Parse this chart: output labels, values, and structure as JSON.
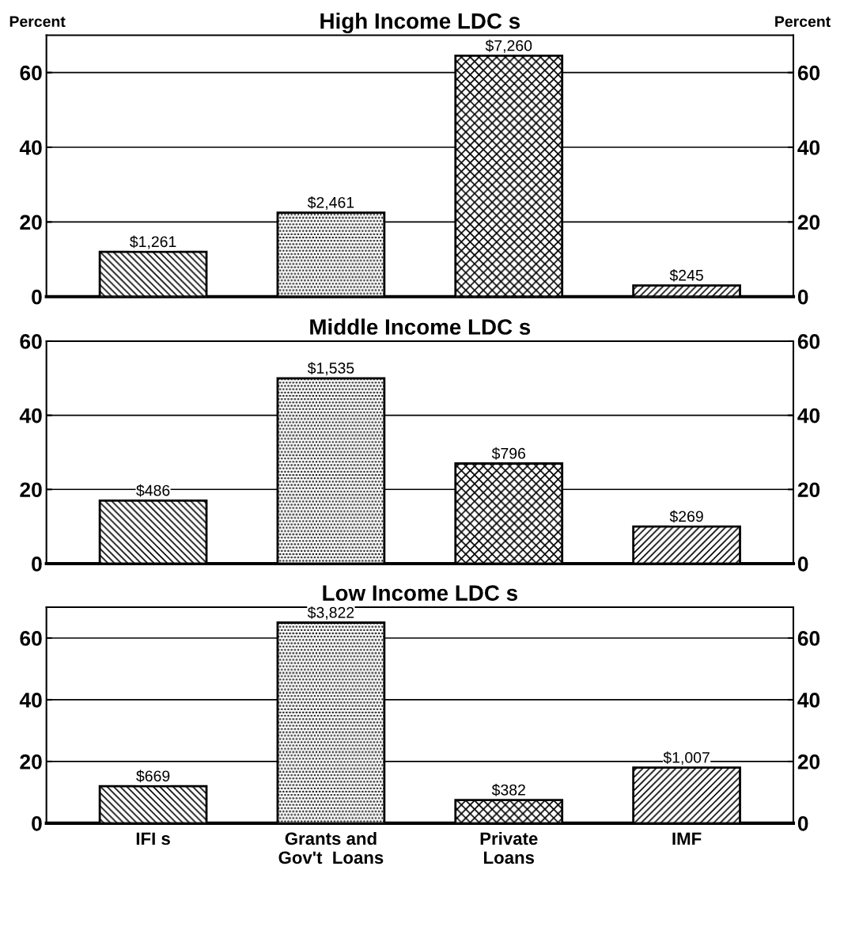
{
  "chart_data": [
    {
      "type": "bar",
      "title": "High Income LDC s",
      "ylabel": "Percent",
      "y2label": "Percent",
      "categories": [
        null,
        null,
        null,
        null
      ],
      "values": [
        12,
        22.5,
        64.5,
        3
      ],
      "annotations": [
        {
          "text": "$1,261",
          "y": 12
        },
        {
          "text": "$2,461",
          "y": 22.5
        },
        {
          "text": "$7,260",
          "y": 64.5
        },
        {
          "text": "$245",
          "y": 3
        }
      ],
      "colors": [
        "#000000",
        "#000000",
        "#000000",
        "#000000"
      ],
      "ylim": [
        0,
        70
      ],
      "yticks": [
        0,
        20,
        40,
        60
      ],
      "y2lim": [
        0,
        70
      ],
      "y2ticks": [
        0,
        20,
        40,
        60
      ],
      "grid": "y"
    },
    {
      "type": "bar",
      "title": "Middle Income LDC s",
      "categories": [
        null,
        null,
        null,
        null
      ],
      "values": [
        17,
        50,
        27,
        10
      ],
      "annotations": [
        {
          "text": "$486",
          "y": 17
        },
        {
          "text": "$1,535",
          "y": 50
        },
        {
          "text": "$796",
          "y": 27
        },
        {
          "text": "$269",
          "y": 10
        }
      ],
      "colors": [
        "#000000",
        "#000000",
        "#000000",
        "#000000"
      ],
      "ylim": [
        0,
        60
      ],
      "yticks": [
        0,
        20,
        40,
        60
      ],
      "y2lim": [
        0,
        60
      ],
      "y2ticks": [
        0,
        20,
        40,
        60
      ],
      "grid": "y"
    },
    {
      "type": "bar",
      "title": "Low Income LDC s",
      "categories": [
        "IFI s",
        "Grants and\nGov't  Loans",
        "Private\nLoans",
        "IMF"
      ],
      "values": [
        12,
        65,
        7.5,
        18
      ],
      "annotations": [
        {
          "text": "$669",
          "x": "IFI s",
          "y": 12
        },
        {
          "text": "$3,822",
          "x": "Grants and\nGov't  Loans",
          "y": 65
        },
        {
          "text": "$382",
          "x": "Private\nLoans",
          "y": 7.5
        },
        {
          "text": "$1,007",
          "x": "IMF",
          "y": 18
        }
      ],
      "colors": [
        "#000000",
        "#000000",
        "#000000",
        "#000000"
      ],
      "ylim": [
        0,
        70
      ],
      "yticks": [
        0,
        20,
        40,
        60
      ],
      "y2lim": [
        0,
        70
      ],
      "y2ticks": [
        0,
        20,
        40,
        60
      ],
      "grid": "y"
    }
  ]
}
